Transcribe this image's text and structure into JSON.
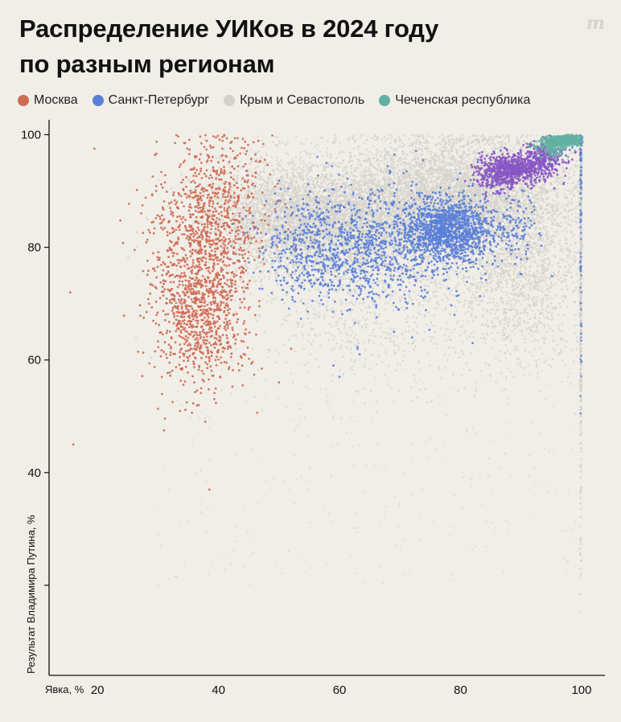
{
  "header": {
    "title_line1": "Распределение УИКов в 2024 году",
    "title_line2": "по разным регионам",
    "brand_mark": "m"
  },
  "legend": [
    {
      "label": "Москва",
      "color": "#cf6a54"
    },
    {
      "label": "Санкт-Петербург",
      "color": "#5a7fd8"
    },
    {
      "label": "Крым и Севастополь",
      "color": "#d4d1cb"
    },
    {
      "label": "Чеченская республика",
      "color": "#62b1a3"
    }
  ],
  "chart_data": {
    "type": "scatter",
    "title": "Распределение УИКов в 2024 году по разным регионам",
    "xlabel": "Явка, %",
    "ylabel": "Результат Владимира Путина, %",
    "xlim": [
      12,
      102
    ],
    "ylim": [
      4,
      101.5
    ],
    "x_ticks": [
      20,
      40,
      60,
      80,
      100
    ],
    "y_ticks": [
      40,
      60,
      80,
      100
    ],
    "y_tick_extra_marks": [
      20
    ],
    "grid": false,
    "legend_position": "top-left",
    "series": [
      {
        "name": "Москва",
        "color": "#cf6a54",
        "clusters": [
          {
            "cx": 38,
            "cy": 83,
            "sx": 3.8,
            "sy": 7.5,
            "n": 650
          },
          {
            "cx": 37,
            "cy": 68,
            "sx": 3.6,
            "sy": 6.5,
            "n": 700
          },
          {
            "cx": 42,
            "cy": 88,
            "sx": 3.5,
            "sy": 7,
            "n": 200
          },
          {
            "cx": 32,
            "cy": 75,
            "sx": 3.5,
            "sy": 10,
            "n": 150
          }
        ],
        "outliers": [
          [
            19.5,
            97.5
          ],
          [
            15.5,
            72
          ],
          [
            16,
            45
          ],
          [
            38.5,
            37
          ],
          [
            31,
            47.5
          ],
          [
            50,
            56
          ],
          [
            52,
            62
          ]
        ]
      },
      {
        "name": "Санкт-Петербург",
        "color": "#5a7fd8",
        "clusters": [
          {
            "cx": 78,
            "cy": 83,
            "sx": 3.5,
            "sy": 2.8,
            "n": 1200
          },
          {
            "cx": 65,
            "cy": 80,
            "sx": 8,
            "sy": 5,
            "n": 1000
          },
          {
            "cx": 55,
            "cy": 80,
            "sx": 4,
            "sy": 5,
            "n": 250
          },
          {
            "cx": 88,
            "cy": 84,
            "sx": 3,
            "sy": 4,
            "n": 150
          }
        ],
        "vertical_line": {
          "x": 100,
          "y_from": 44,
          "y_to": 100,
          "n": 90
        },
        "outliers": [
          [
            59,
            59
          ],
          [
            60,
            57
          ],
          [
            63,
            62
          ],
          [
            69,
            65
          ],
          [
            72,
            64
          ],
          [
            79,
            68
          ],
          [
            82,
            63
          ]
        ]
      },
      {
        "name": "Крым и Севастополь",
        "color": "#d4d1cb",
        "clusters": [
          {
            "cx": 60,
            "cy": 85,
            "sx": 10,
            "sy": 5,
            "n": 4500
          },
          {
            "cx": 80,
            "cy": 90,
            "sx": 9,
            "sy": 5,
            "n": 4000
          },
          {
            "cx": 90,
            "cy": 78,
            "sx": 6,
            "sy": 9,
            "n": 1800
          },
          {
            "cx": 50,
            "cy": 86,
            "sx": 5,
            "sy": 5,
            "n": 1000
          },
          {
            "cx": 65,
            "cy": 70,
            "sx": 10,
            "sy": 8,
            "n": 800
          }
        ],
        "vertical_line": {
          "x": 100,
          "y_from": 8,
          "y_to": 100,
          "n": 450
        }
      },
      {
        "name": "purple-overlap",
        "color": "#8757c4",
        "clusters": [
          {
            "cx": 89,
            "cy": 94,
            "sx": 2.8,
            "sy": 1.3,
            "n": 700
          },
          {
            "cx": 94,
            "cy": 96,
            "sx": 2,
            "sy": 1.4,
            "n": 250
          },
          {
            "cx": 86,
            "cy": 92,
            "sx": 1.5,
            "sy": 1.2,
            "n": 120
          }
        ]
      },
      {
        "name": "Чеченская республика",
        "color": "#62b1a3",
        "clusters": [
          {
            "cx": 97,
            "cy": 99,
            "sx": 1.5,
            "sy": 0.45,
            "n": 600
          },
          {
            "cx": 95,
            "cy": 97.5,
            "sx": 1.5,
            "sy": 0.8,
            "n": 120
          }
        ]
      }
    ]
  }
}
